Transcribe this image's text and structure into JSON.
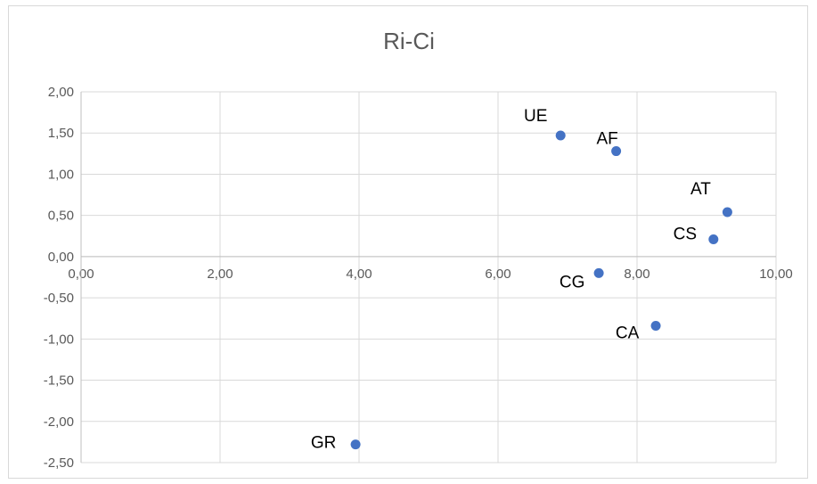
{
  "chart_data": {
    "type": "scatter",
    "title": "Ri-Ci",
    "xlabel": "",
    "ylabel": "",
    "xlim": [
      0,
      10
    ],
    "ylim": [
      -2.5,
      2.0
    ],
    "x_ticks": [
      "0,00",
      "2,00",
      "4,00",
      "6,00",
      "8,00",
      "10,00"
    ],
    "y_ticks": [
      "2,00",
      "1,50",
      "1,00",
      "0,50",
      "0,00",
      "-0,50",
      "-1,00",
      "-1,50",
      "-2,00",
      "-2,50"
    ],
    "grid": true,
    "legend": "none",
    "marker_color": "#4472c4",
    "points": [
      {
        "label": "UE",
        "x": 6.9,
        "y": 1.47
      },
      {
        "label": "AF",
        "x": 7.7,
        "y": 1.28
      },
      {
        "label": "AT",
        "x": 9.3,
        "y": 0.54
      },
      {
        "label": "CS",
        "x": 9.1,
        "y": 0.21
      },
      {
        "label": "CG",
        "x": 7.45,
        "y": -0.2
      },
      {
        "label": "CA",
        "x": 8.27,
        "y": -0.84
      },
      {
        "label": "GR",
        "x": 3.95,
        "y": -2.28
      }
    ]
  }
}
